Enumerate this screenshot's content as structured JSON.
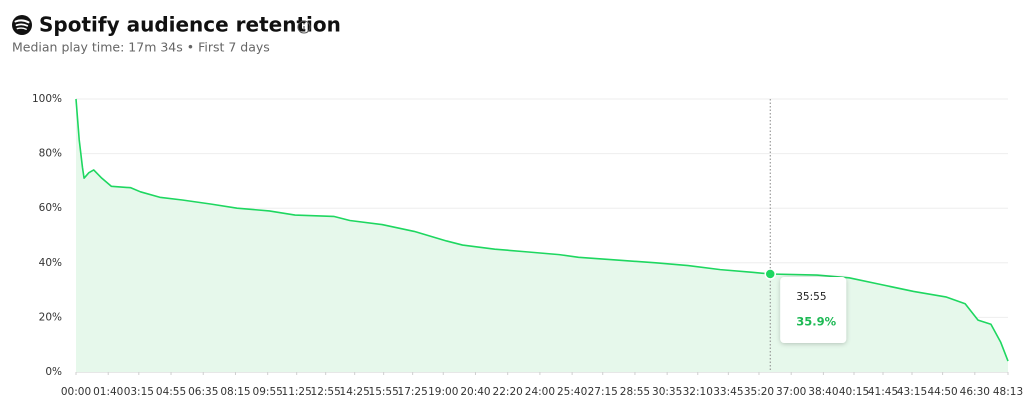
{
  "chart_data": {
    "type": "area",
    "title": "Spotify audience retention",
    "subtitle": "Median play time: 17m 34s • First 7 days",
    "color": "#1ed760",
    "fill": "#e6f8eb",
    "x": [
      0,
      10,
      20,
      25,
      40,
      55,
      80,
      110,
      170,
      200,
      260,
      330,
      420,
      500,
      600,
      680,
      800,
      850,
      950,
      1050,
      1150,
      1200,
      1300,
      1400,
      1500,
      1560,
      1680,
      1800,
      1900,
      2000,
      2100,
      2155,
      2300,
      2400,
      2500,
      2600,
      2700,
      2760,
      2800,
      2840,
      2870,
      2893
    ],
    "values": [
      100,
      85,
      75,
      71,
      73,
      74,
      71,
      68,
      67.5,
      66,
      64,
      63,
      61.5,
      60,
      59,
      57.5,
      57,
      55.5,
      54,
      51.5,
      48,
      46.5,
      45,
      44,
      43,
      42,
      41,
      40,
      39,
      37.5,
      36.5,
      35.9,
      35.5,
      34.5,
      32,
      29.5,
      27.5,
      25,
      19,
      17.5,
      11,
      4
    ],
    "xlim": [
      0,
      2893
    ],
    "xticks": [
      {
        "value": 0,
        "label": "00:00"
      },
      {
        "value": 100,
        "label": "01:40"
      },
      {
        "value": 195,
        "label": "03:15"
      },
      {
        "value": 295,
        "label": "04:55"
      },
      {
        "value": 395,
        "label": "06:35"
      },
      {
        "value": 495,
        "label": "08:15"
      },
      {
        "value": 595,
        "label": "09:55"
      },
      {
        "value": 685,
        "label": "11:25"
      },
      {
        "value": 775,
        "label": "12:55"
      },
      {
        "value": 865,
        "label": "14:25"
      },
      {
        "value": 955,
        "label": "15:55"
      },
      {
        "value": 1045,
        "label": "17:25"
      },
      {
        "value": 1140,
        "label": "19:00"
      },
      {
        "value": 1240,
        "label": "20:40"
      },
      {
        "value": 1340,
        "label": "22:20"
      },
      {
        "value": 1440,
        "label": "24:00"
      },
      {
        "value": 1540,
        "label": "25:40"
      },
      {
        "value": 1635,
        "label": "27:15"
      },
      {
        "value": 1735,
        "label": "28:55"
      },
      {
        "value": 1835,
        "label": "30:35"
      },
      {
        "value": 1930,
        "label": "32:10"
      },
      {
        "value": 2025,
        "label": "33:45"
      },
      {
        "value": 2120,
        "label": "35:20"
      },
      {
        "value": 2220,
        "label": "37:00"
      },
      {
        "value": 2320,
        "label": "38:40"
      },
      {
        "value": 2415,
        "label": "40:15"
      },
      {
        "value": 2505,
        "label": "41:45"
      },
      {
        "value": 2595,
        "label": "43:15"
      },
      {
        "value": 2690,
        "label": "44:50"
      },
      {
        "value": 2790,
        "label": "46:30"
      },
      {
        "value": 2893,
        "label": "48:13"
      }
    ],
    "ylim": [
      0,
      100
    ],
    "yticks": [
      {
        "value": 0,
        "label": "0%"
      },
      {
        "value": 20,
        "label": "20%"
      },
      {
        "value": 40,
        "label": "40%"
      },
      {
        "value": 60,
        "label": "60%"
      },
      {
        "value": 80,
        "label": "80%"
      },
      {
        "value": 100,
        "label": "100%"
      }
    ],
    "grid": true,
    "tooltip": {
      "x": 2155,
      "x_label": "35:55",
      "value": 35.9,
      "value_label": "35.9%"
    }
  }
}
